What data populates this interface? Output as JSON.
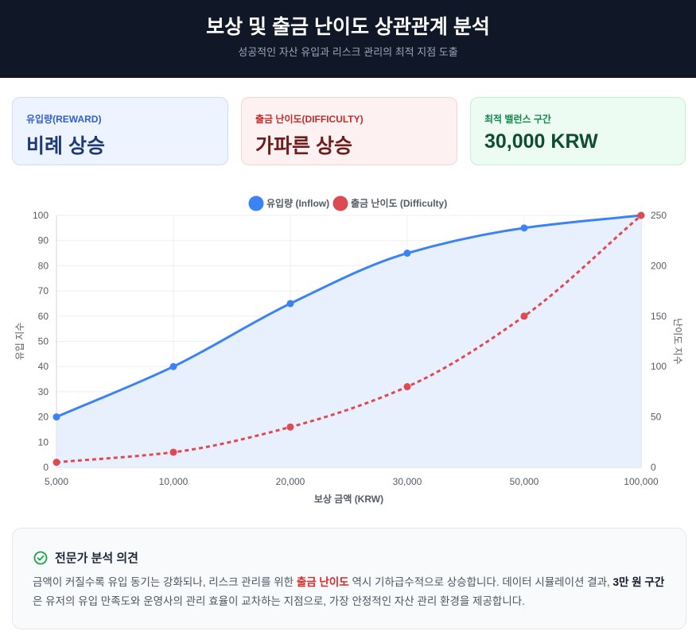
{
  "header": {
    "title": "보상 및 출금 난이도 상관관계 분석",
    "subtitle": "성공적인 자산 유입과 리스크 관리의 최적 지점 도출"
  },
  "cards": [
    {
      "label": "유입량(REWARD)",
      "value": "비례 상승"
    },
    {
      "label": "출금 난이도(DIFFICULTY)",
      "value": "가파른 상승"
    },
    {
      "label": "최적 밸런스 구간",
      "value": "30,000 KRW"
    }
  ],
  "colors": {
    "inflow": "#3b82f6",
    "difficulty": "#dc4a52",
    "inflow_fill": "#e9f0fd"
  },
  "chart_data": {
    "type": "line",
    "categories": [
      "5,000",
      "10,000",
      "20,000",
      "30,000",
      "50,000",
      "100,000"
    ],
    "series": [
      {
        "name": "유입량 (Inflow)",
        "axis": "left",
        "style": "solid-filled",
        "values": [
          20,
          40,
          65,
          85,
          95,
          100
        ]
      },
      {
        "name": "출금 난이도 (Difficulty)",
        "axis": "right",
        "style": "dashed",
        "values": [
          5,
          15,
          40,
          80,
          150,
          250
        ]
      }
    ],
    "xlabel": "보상 금액 (KRW)",
    "ylabel_left": "유입 지수",
    "ylabel_right": "난이도 지수",
    "ylim_left": [
      0,
      100
    ],
    "yticks_left": [
      0,
      10,
      20,
      30,
      40,
      50,
      60,
      70,
      80,
      90,
      100
    ],
    "ylim_right": [
      0,
      250
    ],
    "yticks_right": [
      0,
      50,
      100,
      150,
      200,
      250
    ],
    "legend_position": "top-center",
    "grid": true
  },
  "analysis": {
    "title": "전문가 분석 의견",
    "text_1": "금액이 커질수록 유입 동기는 강화되나, 리스크 관리를 위한 ",
    "highlight_1": "출금 난이도",
    "text_2": " 역시 기하급수적으로 상승합니다. 데이터 시뮬레이션 결과, ",
    "highlight_2": "3만 원 구간",
    "text_3": "은 유저의 유입 만족도와 운영사의 관리 효율이 교차하는 지점으로, 가장 안정적인 자산 관리 환경을 제공합니다."
  }
}
